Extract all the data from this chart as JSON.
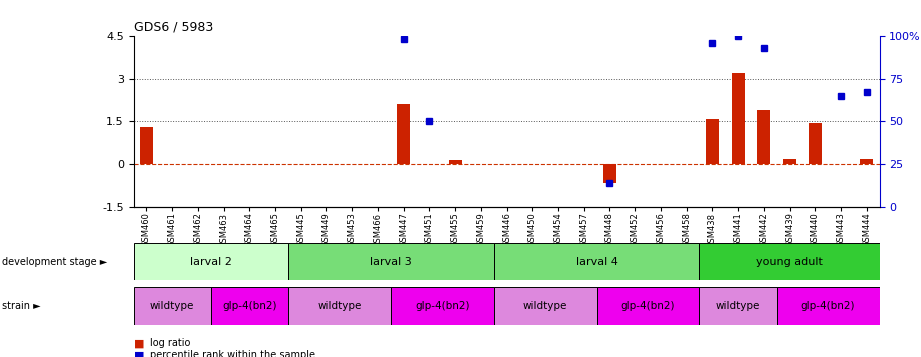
{
  "title": "GDS6 / 5983",
  "samples": [
    "GSM460",
    "GSM461",
    "GSM462",
    "GSM463",
    "GSM464",
    "GSM465",
    "GSM445",
    "GSM449",
    "GSM453",
    "GSM466",
    "GSM447",
    "GSM451",
    "GSM455",
    "GSM459",
    "GSM446",
    "GSM450",
    "GSM454",
    "GSM457",
    "GSM448",
    "GSM452",
    "GSM456",
    "GSM458",
    "GSM438",
    "GSM441",
    "GSM442",
    "GSM439",
    "GSM440",
    "GSM443",
    "GSM444"
  ],
  "log_ratio": [
    1.3,
    0.0,
    0.0,
    0.0,
    0.0,
    0.0,
    0.0,
    0.0,
    0.0,
    0.0,
    2.1,
    0.0,
    0.15,
    0.0,
    0.0,
    0.0,
    0.0,
    0.0,
    -0.65,
    0.0,
    0.0,
    0.0,
    1.6,
    3.2,
    1.9,
    0.2,
    1.45,
    0.0,
    0.2
  ],
  "percentile_idx": [
    10,
    11,
    18,
    22,
    23,
    24,
    27,
    28
  ],
  "percentile_val": [
    98,
    50,
    14,
    96,
    100,
    93,
    65,
    67
  ],
  "ylim_left": [
    -1.5,
    4.5
  ],
  "ylim_right": [
    0,
    100
  ],
  "yticks_left": [
    -1.5,
    0.0,
    1.5,
    3.0,
    4.5
  ],
  "ytick_labels_left": [
    "-1.5",
    "0",
    "1.5",
    "3",
    "4.5"
  ],
  "yticks_right": [
    0,
    25,
    50,
    75,
    100
  ],
  "ytick_labels_right": [
    "0",
    "25",
    "50",
    "75",
    "100%"
  ],
  "dev_stage_groups": [
    {
      "label": "larval 2",
      "start": 0,
      "end": 6,
      "color": "#ccffcc"
    },
    {
      "label": "larval 3",
      "start": 6,
      "end": 14,
      "color": "#77dd77"
    },
    {
      "label": "larval 4",
      "start": 14,
      "end": 22,
      "color": "#77dd77"
    },
    {
      "label": "young adult",
      "start": 22,
      "end": 29,
      "color": "#33cc33"
    }
  ],
  "strain_groups": [
    {
      "label": "wildtype",
      "start": 0,
      "end": 3,
      "color": "#dd88dd"
    },
    {
      "label": "glp-4(bn2)",
      "start": 3,
      "end": 6,
      "color": "#ee00ee"
    },
    {
      "label": "wildtype",
      "start": 6,
      "end": 10,
      "color": "#dd88dd"
    },
    {
      "label": "glp-4(bn2)",
      "start": 10,
      "end": 14,
      "color": "#ee00ee"
    },
    {
      "label": "wildtype",
      "start": 14,
      "end": 18,
      "color": "#dd88dd"
    },
    {
      "label": "glp-4(bn2)",
      "start": 18,
      "end": 22,
      "color": "#ee00ee"
    },
    {
      "label": "wildtype",
      "start": 22,
      "end": 25,
      "color": "#dd88dd"
    },
    {
      "label": "glp-4(bn2)",
      "start": 25,
      "end": 29,
      "color": "#ee00ee"
    }
  ],
  "bar_color": "#cc2200",
  "dot_color": "#0000cc",
  "bg_color": "#ffffff",
  "zero_line_color": "#cc3300",
  "dotted_line_color": "#555555",
  "label_dev_stage": "development stage ►",
  "label_strain": "strain ►",
  "legend_log": "log ratio",
  "legend_pct": "percentile rank within the sample"
}
